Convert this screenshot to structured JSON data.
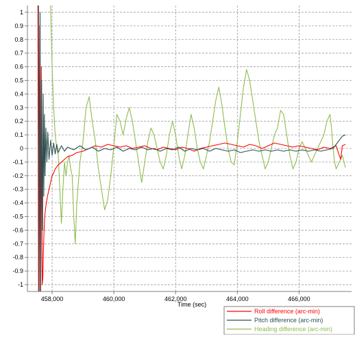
{
  "chart_data": {
    "type": "line",
    "title": "",
    "xlabel": "Time (sec)",
    "ylabel": "",
    "xlim": [
      457200,
      467700
    ],
    "ylim": [
      -1.05,
      1.05
    ],
    "x_ticks": [
      {
        "value": 458000,
        "label": "458,000"
      },
      {
        "value": 460000,
        "label": "460,000"
      },
      {
        "value": 462000,
        "label": "462,000"
      },
      {
        "value": 464000,
        "label": "464,000"
      },
      {
        "value": 466000,
        "label": "466,000"
      }
    ],
    "y_ticks": [
      {
        "value": 1,
        "label": "1"
      },
      {
        "value": 0.9,
        "label": "0.9"
      },
      {
        "value": 0.8,
        "label": "0.8"
      },
      {
        "value": 0.7,
        "label": "0.7"
      },
      {
        "value": 0.6,
        "label": "0.6"
      },
      {
        "value": 0.5,
        "label": "0.5"
      },
      {
        "value": 0.4,
        "label": "0.4"
      },
      {
        "value": 0.3,
        "label": "0.3"
      },
      {
        "value": 0.2,
        "label": "0.2"
      },
      {
        "value": 0.1,
        "label": "0.1"
      },
      {
        "value": 0,
        "label": "0"
      },
      {
        "value": -0.1,
        "label": "-0.1"
      },
      {
        "value": -0.2,
        "label": "-0.2"
      },
      {
        "value": -0.3,
        "label": "-0.3"
      },
      {
        "value": -0.4,
        "label": "-0.4"
      },
      {
        "value": -0.5,
        "label": "-0.5"
      },
      {
        "value": -0.6,
        "label": "-0.6"
      },
      {
        "value": -0.7,
        "label": "-0.7"
      },
      {
        "value": -0.8,
        "label": "-0.8"
      },
      {
        "value": -0.9,
        "label": "-0.9"
      },
      {
        "value": -1,
        "label": "-1"
      }
    ],
    "grid": true,
    "legend_position": "bottom-right",
    "series": [
      {
        "name": "Roll difference (arc-min)",
        "color": "#ff0000",
        "points": [
          [
            457540,
            1.05
          ],
          [
            457560,
            -1.05
          ],
          [
            457600,
            0.9
          ],
          [
            457620,
            -1.05
          ],
          [
            457650,
            0.6
          ],
          [
            457680,
            -1.0
          ],
          [
            457700,
            -0.95
          ],
          [
            457720,
            -0.75
          ],
          [
            457740,
            -0.6
          ],
          [
            457760,
            -0.5
          ],
          [
            457800,
            -0.42
          ],
          [
            457850,
            -0.35
          ],
          [
            457900,
            -0.3
          ],
          [
            457950,
            -0.25
          ],
          [
            458000,
            -0.2
          ],
          [
            458050,
            -0.18
          ],
          [
            458100,
            -0.15
          ],
          [
            458200,
            -0.12
          ],
          [
            458300,
            -0.1
          ],
          [
            458400,
            -0.08
          ],
          [
            458500,
            -0.06
          ],
          [
            458650,
            -0.05
          ],
          [
            458800,
            -0.03
          ],
          [
            459000,
            -0.02
          ],
          [
            459200,
            0.0
          ],
          [
            459400,
            0.02
          ],
          [
            459600,
            0.01
          ],
          [
            459800,
            0.03
          ],
          [
            460000,
            0.02
          ],
          [
            460200,
            0.01
          ],
          [
            460400,
            0.02
          ],
          [
            460600,
            0.0
          ],
          [
            460800,
            0.01
          ],
          [
            461000,
            0.02
          ],
          [
            461200,
            0.0
          ],
          [
            461400,
            -0.01
          ],
          [
            461600,
            0.01
          ],
          [
            461800,
            0.0
          ],
          [
            462000,
            -0.01
          ],
          [
            462200,
            0.01
          ],
          [
            462400,
            0.0
          ],
          [
            462600,
            -0.02
          ],
          [
            462800,
            0.0
          ],
          [
            463000,
            0.01
          ],
          [
            463200,
            0.02
          ],
          [
            463400,
            0.03
          ],
          [
            463600,
            0.04
          ],
          [
            463800,
            0.03
          ],
          [
            464000,
            0.02
          ],
          [
            464200,
            0.01
          ],
          [
            464400,
            0.03
          ],
          [
            464600,
            0.02
          ],
          [
            464800,
            0.0
          ],
          [
            465000,
            0.02
          ],
          [
            465200,
            0.04
          ],
          [
            465400,
            0.03
          ],
          [
            465600,
            0.02
          ],
          [
            465800,
            0.01
          ],
          [
            466000,
            0.02
          ],
          [
            466200,
            0.01
          ],
          [
            466400,
            0.0
          ],
          [
            466600,
            -0.01
          ],
          [
            466800,
            0.01
          ],
          [
            467000,
            0.0
          ],
          [
            467200,
            0.02
          ],
          [
            467300,
            -0.05
          ],
          [
            467350,
            -0.08
          ],
          [
            467400,
            0.02
          ],
          [
            467500,
            0.03
          ]
        ]
      },
      {
        "name": "Pitch difference (arc-min)",
        "color": "#2f4f4f",
        "points": [
          [
            457560,
            1.05
          ],
          [
            457580,
            -1.05
          ],
          [
            457610,
            1.0
          ],
          [
            457630,
            -1.05
          ],
          [
            457660,
            0.5
          ],
          [
            457690,
            -0.6
          ],
          [
            457710,
            0.4
          ],
          [
            457730,
            -0.35
          ],
          [
            457750,
            0.25
          ],
          [
            457770,
            -0.2
          ],
          [
            457800,
            0.15
          ],
          [
            457830,
            -0.1
          ],
          [
            457860,
            0.12
          ],
          [
            457900,
            -0.08
          ],
          [
            457950,
            0.06
          ],
          [
            458000,
            -0.05
          ],
          [
            458050,
            0.04
          ],
          [
            458100,
            -0.04
          ],
          [
            458150,
            0.03
          ],
          [
            458200,
            -0.03
          ],
          [
            458300,
            0.02
          ],
          [
            458400,
            -0.02
          ],
          [
            458500,
            0.01
          ],
          [
            458700,
            -0.01
          ],
          [
            458900,
            0.02
          ],
          [
            459100,
            -0.01
          ],
          [
            459300,
            0.01
          ],
          [
            459500,
            -0.02
          ],
          [
            459700,
            0.0
          ],
          [
            459900,
            -0.01
          ],
          [
            460100,
            0.01
          ],
          [
            460300,
            -0.02
          ],
          [
            460500,
            0.0
          ],
          [
            460700,
            -0.01
          ],
          [
            460900,
            0.01
          ],
          [
            461100,
            -0.01
          ],
          [
            461300,
            0.0
          ],
          [
            461500,
            -0.02
          ],
          [
            461700,
            0.0
          ],
          [
            461900,
            -0.01
          ],
          [
            462100,
            0.01
          ],
          [
            462300,
            -0.02
          ],
          [
            462500,
            0.0
          ],
          [
            462700,
            -0.01
          ],
          [
            462900,
            0.0
          ],
          [
            463100,
            -0.02
          ],
          [
            463300,
            0.0
          ],
          [
            463500,
            -0.01
          ],
          [
            463700,
            -0.02
          ],
          [
            463900,
            -0.01
          ],
          [
            464100,
            -0.03
          ],
          [
            464300,
            -0.02
          ],
          [
            464500,
            -0.01
          ],
          [
            464700,
            -0.02
          ],
          [
            464900,
            -0.01
          ],
          [
            465100,
            -0.02
          ],
          [
            465300,
            -0.01
          ],
          [
            465500,
            -0.02
          ],
          [
            465700,
            -0.01
          ],
          [
            465900,
            -0.02
          ],
          [
            466100,
            -0.01
          ],
          [
            466300,
            -0.02
          ],
          [
            466500,
            -0.01
          ],
          [
            466700,
            -0.02
          ],
          [
            466900,
            -0.01
          ],
          [
            467100,
            0.0
          ],
          [
            467200,
            0.03
          ],
          [
            467300,
            0.06
          ],
          [
            467400,
            0.09
          ],
          [
            467500,
            0.1
          ]
        ]
      },
      {
        "name": "Heading difference (arc-min)",
        "color": "#8fbc4f",
        "points": [
          [
            457950,
            1.05
          ],
          [
            458000,
            0.6
          ],
          [
            458050,
            0.3
          ],
          [
            458100,
            0.1
          ],
          [
            458150,
            0.0
          ],
          [
            458200,
            -0.05
          ],
          [
            458250,
            -0.3
          ],
          [
            458300,
            -0.55
          ],
          [
            458350,
            -0.3
          ],
          [
            458400,
            -0.1
          ],
          [
            458450,
            -0.2
          ],
          [
            458500,
            -0.1
          ],
          [
            458550,
            -0.05
          ],
          [
            458600,
            -0.15
          ],
          [
            458650,
            -0.2
          ],
          [
            458700,
            -0.5
          ],
          [
            458750,
            -0.7
          ],
          [
            458800,
            -0.4
          ],
          [
            458900,
            -0.1
          ],
          [
            459000,
            0.05
          ],
          [
            459100,
            0.3
          ],
          [
            459200,
            0.38
          ],
          [
            459300,
            0.2
          ],
          [
            459400,
            0.05
          ],
          [
            459500,
            -0.15
          ],
          [
            459600,
            -0.3
          ],
          [
            459700,
            -0.45
          ],
          [
            459800,
            -0.38
          ],
          [
            459900,
            -0.2
          ],
          [
            460000,
            0.02
          ],
          [
            460100,
            0.25
          ],
          [
            460200,
            0.2
          ],
          [
            460300,
            0.1
          ],
          [
            460400,
            0.22
          ],
          [
            460500,
            0.3
          ],
          [
            460600,
            0.2
          ],
          [
            460700,
            0.05
          ],
          [
            460800,
            -0.1
          ],
          [
            460900,
            -0.25
          ],
          [
            461000,
            -0.1
          ],
          [
            461100,
            0.05
          ],
          [
            461200,
            0.15
          ],
          [
            461300,
            0.1
          ],
          [
            461400,
            0.0
          ],
          [
            461500,
            -0.1
          ],
          [
            461600,
            -0.15
          ],
          [
            461700,
            -0.05
          ],
          [
            461800,
            0.1
          ],
          [
            461900,
            0.2
          ],
          [
            462000,
            0.1
          ],
          [
            462100,
            -0.05
          ],
          [
            462200,
            -0.15
          ],
          [
            462300,
            -0.05
          ],
          [
            462400,
            0.1
          ],
          [
            462500,
            0.25
          ],
          [
            462600,
            0.15
          ],
          [
            462700,
            0.0
          ],
          [
            462800,
            -0.1
          ],
          [
            462900,
            -0.15
          ],
          [
            463000,
            -0.05
          ],
          [
            463100,
            0.05
          ],
          [
            463200,
            0.2
          ],
          [
            463300,
            0.35
          ],
          [
            463400,
            0.45
          ],
          [
            463500,
            0.32
          ],
          [
            463600,
            0.15
          ],
          [
            463700,
            0.0
          ],
          [
            463800,
            -0.1
          ],
          [
            463900,
            -0.12
          ],
          [
            464000,
            0.05
          ],
          [
            464100,
            0.25
          ],
          [
            464200,
            0.45
          ],
          [
            464300,
            0.58
          ],
          [
            464400,
            0.5
          ],
          [
            464500,
            0.35
          ],
          [
            464600,
            0.2
          ],
          [
            464700,
            0.05
          ],
          [
            464800,
            -0.05
          ],
          [
            464900,
            -0.15
          ],
          [
            465000,
            -0.1
          ],
          [
            465100,
            0.0
          ],
          [
            465200,
            0.1
          ],
          [
            465300,
            0.15
          ],
          [
            465400,
            0.28
          ],
          [
            465500,
            0.25
          ],
          [
            465600,
            0.1
          ],
          [
            465700,
            -0.05
          ],
          [
            465800,
            -0.15
          ],
          [
            465900,
            -0.1
          ],
          [
            466000,
            0.0
          ],
          [
            466100,
            0.05
          ],
          [
            466200,
            0.0
          ],
          [
            466300,
            -0.05
          ],
          [
            466400,
            -0.1
          ],
          [
            466500,
            -0.05
          ],
          [
            466600,
            0.0
          ],
          [
            466700,
            0.05
          ],
          [
            466800,
            0.1
          ],
          [
            466900,
            0.2
          ],
          [
            467000,
            0.25
          ],
          [
            467050,
            0.15
          ],
          [
            467100,
            0.0
          ],
          [
            467150,
            -0.1
          ],
          [
            467200,
            -0.15
          ],
          [
            467300,
            -0.1
          ],
          [
            467400,
            -0.05
          ],
          [
            467500,
            -0.14
          ]
        ]
      }
    ]
  }
}
